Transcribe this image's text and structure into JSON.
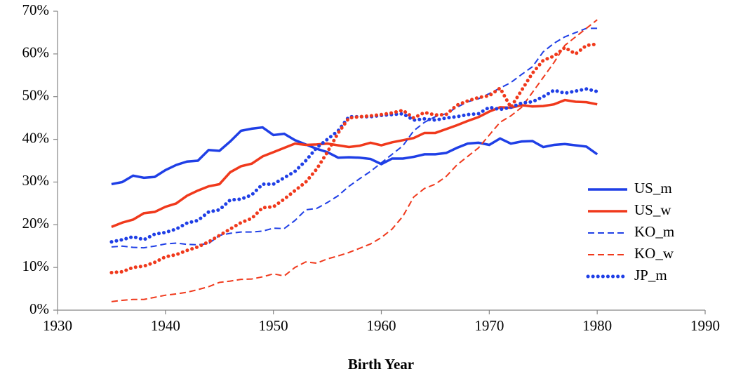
{
  "chart_data": {
    "type": "line",
    "xlabel": "Birth Year",
    "x": [
      1935,
      1936,
      1937,
      1938,
      1939,
      1940,
      1941,
      1942,
      1943,
      1944,
      1945,
      1946,
      1947,
      1948,
      1949,
      1950,
      1951,
      1952,
      1953,
      1954,
      1955,
      1956,
      1957,
      1958,
      1959,
      1960,
      1961,
      1962,
      1963,
      1964,
      1965,
      1966,
      1967,
      1968,
      1969,
      1970,
      1971,
      1972,
      1973,
      1974,
      1975,
      1976,
      1977,
      1978,
      1979,
      1980
    ],
    "xlim": [
      1930,
      1990
    ],
    "xticks": [
      1930,
      1940,
      1950,
      1960,
      1970,
      1980,
      1990
    ],
    "ylim": [
      0,
      70
    ],
    "yticks": [
      {
        "value": 0,
        "label": "0%"
      },
      {
        "value": 10,
        "label": "10%"
      },
      {
        "value": 20,
        "label": "20%"
      },
      {
        "value": 30,
        "label": "30%"
      },
      {
        "value": 40,
        "label": "40%"
      },
      {
        "value": 50,
        "label": "50%"
      },
      {
        "value": 60,
        "label": "60%"
      },
      {
        "value": 70,
        "label": "70%"
      }
    ],
    "grid": false,
    "legend": "right",
    "series": [
      {
        "name": "US_m",
        "color": "#1f3fe6",
        "dash": "solid",
        "values": [
          29.5,
          30,
          31.5,
          31,
          31.2,
          32.8,
          34,
          34.8,
          35,
          37.5,
          37.3,
          39.5,
          42,
          42.5,
          42.8,
          41,
          41.3,
          39.8,
          38.8,
          37.8,
          37,
          35.7,
          35.8,
          35.7,
          35.4,
          34.2,
          35.5,
          35.5,
          35.9,
          36.5,
          36.5,
          36.8,
          38,
          39,
          39.2,
          38.7,
          40.2,
          39,
          39.5,
          39.6,
          38.2,
          38.7,
          38.9,
          38.6,
          38.3,
          36.5
        ]
      },
      {
        "name": "US_w",
        "color": "#f0391c",
        "dash": "solid",
        "values": [
          19.5,
          20.5,
          21.2,
          22.7,
          23,
          24.2,
          25,
          26.8,
          28,
          29,
          29.5,
          32.3,
          33.7,
          34.3,
          36,
          37,
          38,
          39,
          38.7,
          38.8,
          39,
          38.6,
          38.2,
          38.5,
          39.2,
          38.6,
          39.3,
          39.8,
          40.3,
          41.5,
          41.5,
          42.4,
          43.3,
          44.3,
          45.2,
          46.5,
          47.5,
          47.4,
          48,
          47.7,
          47.8,
          48.2,
          49.2,
          48.8,
          48.7,
          48.2
        ]
      },
      {
        "name": "KO_m",
        "color": "#1f3fe6",
        "dash": "dashed",
        "values": [
          14.8,
          15,
          14.7,
          14.6,
          15,
          15.5,
          15.7,
          15.4,
          15.3,
          15.6,
          17.5,
          18,
          18.3,
          18.3,
          18.5,
          19.2,
          19.1,
          21,
          23.5,
          23.8,
          25.2,
          26.8,
          29,
          30.8,
          32.5,
          34.5,
          36.5,
          38.5,
          42,
          44,
          45.3,
          46,
          47.5,
          48.8,
          49.5,
          50.7,
          52,
          53.3,
          55.2,
          57,
          60.5,
          62.5,
          64,
          65,
          66,
          66
        ]
      },
      {
        "name": "KO_w",
        "color": "#f0391c",
        "dash": "dashed",
        "values": [
          2,
          2.3,
          2.5,
          2.5,
          3,
          3.5,
          3.8,
          4.2,
          4.8,
          5.5,
          6.5,
          6.8,
          7.2,
          7.3,
          7.8,
          8.5,
          8,
          10,
          11.3,
          11,
          12,
          12.7,
          13.5,
          14.5,
          15.5,
          17,
          19,
          22,
          26.5,
          28.5,
          29.5,
          31.3,
          34,
          36,
          38,
          41,
          44,
          45.5,
          47.5,
          51,
          54.5,
          58,
          62,
          64,
          66,
          68
        ]
      },
      {
        "name": "JP_m",
        "color": "#1f3fe6",
        "dash": "dotted",
        "values": [
          16,
          16.5,
          17.2,
          16.5,
          17.8,
          18.2,
          19,
          20.4,
          21,
          23,
          23.5,
          25.8,
          26,
          27,
          29.5,
          29.5,
          31,
          32.5,
          35,
          38,
          40,
          42,
          45.3,
          45.3,
          45.3,
          45.6,
          45.8,
          46,
          44.5,
          44.8,
          44.5,
          45,
          45.3,
          45.8,
          46,
          47.5,
          47,
          47.5,
          48.5,
          48.8,
          50,
          51.5,
          50.8,
          51.3,
          51.8,
          51.2
        ]
      },
      {
        "color": "#f0391c",
        "dash": "dotted",
        "values": [
          8.8,
          9,
          10,
          10.3,
          11.2,
          12.5,
          13,
          14,
          14.8,
          16,
          17.5,
          19,
          20.5,
          21.5,
          24,
          24.2,
          26,
          28,
          30,
          33,
          37,
          41.5,
          45,
          45.3,
          45.5,
          45.8,
          46.2,
          46.8,
          45,
          46.3,
          45.7,
          45.8,
          48,
          49,
          49.8,
          50.2,
          52,
          47.5,
          51.5,
          55.5,
          58.5,
          59.5,
          61.5,
          60,
          62,
          62.3
        ]
      }
    ]
  }
}
